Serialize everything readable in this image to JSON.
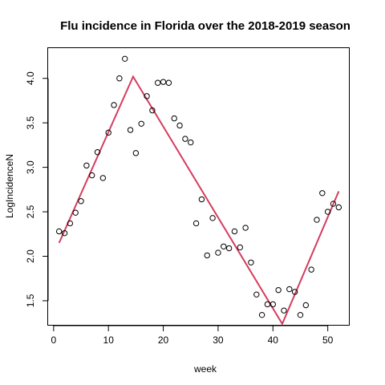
{
  "chart_data": {
    "type": "scatter",
    "title": "Flu incidence in Florida over the 2018-2019 season",
    "xlabel": "week",
    "ylabel": "LogIncidenceN",
    "xlim": [
      -1,
      54
    ],
    "ylim": [
      1.22,
      4.34
    ],
    "xticks": [
      0,
      10,
      20,
      30,
      40,
      50
    ],
    "yticks": [
      1.5,
      2.0,
      2.5,
      3.0,
      3.5,
      4.0
    ],
    "xtick_labels": [
      "0",
      "10",
      "20",
      "30",
      "40",
      "50"
    ],
    "ytick_labels": [
      "1.5",
      "2.0",
      "2.5",
      "3.0",
      "3.5",
      "4.0"
    ],
    "grid": false,
    "series": [
      {
        "kind": "points",
        "marker": "open-circle",
        "color": "#000000",
        "x": [
          1,
          2,
          3,
          4,
          5,
          6,
          7,
          8,
          9,
          10,
          11,
          12,
          13,
          14,
          15,
          16,
          17,
          18,
          19,
          20,
          21,
          22,
          23,
          24,
          25,
          26,
          27,
          28,
          29,
          30,
          31,
          32,
          33,
          34,
          35,
          36,
          37,
          38,
          39,
          40,
          41,
          42,
          43,
          44,
          45,
          46,
          47,
          48,
          49,
          50,
          51,
          52
        ],
        "y": [
          2.28,
          2.26,
          2.37,
          2.49,
          2.62,
          3.02,
          2.91,
          3.17,
          2.88,
          3.39,
          3.7,
          4.0,
          4.22,
          3.42,
          3.16,
          3.49,
          3.8,
          3.64,
          3.95,
          3.96,
          3.95,
          3.55,
          3.47,
          3.32,
          3.28,
          2.37,
          2.64,
          2.01,
          2.43,
          2.04,
          2.11,
          2.09,
          2.28,
          2.1,
          2.32,
          1.93,
          1.57,
          1.34,
          1.46,
          1.46,
          1.62,
          1.39,
          1.63,
          1.6,
          1.34,
          1.45,
          1.85,
          2.41,
          2.71,
          2.5,
          2.59,
          2.55
        ]
      },
      {
        "kind": "line",
        "color": "#d43d5e",
        "x": [
          1,
          14.5,
          41.7,
          52
        ],
        "y": [
          2.15,
          4.02,
          1.24,
          2.73
        ]
      }
    ]
  }
}
